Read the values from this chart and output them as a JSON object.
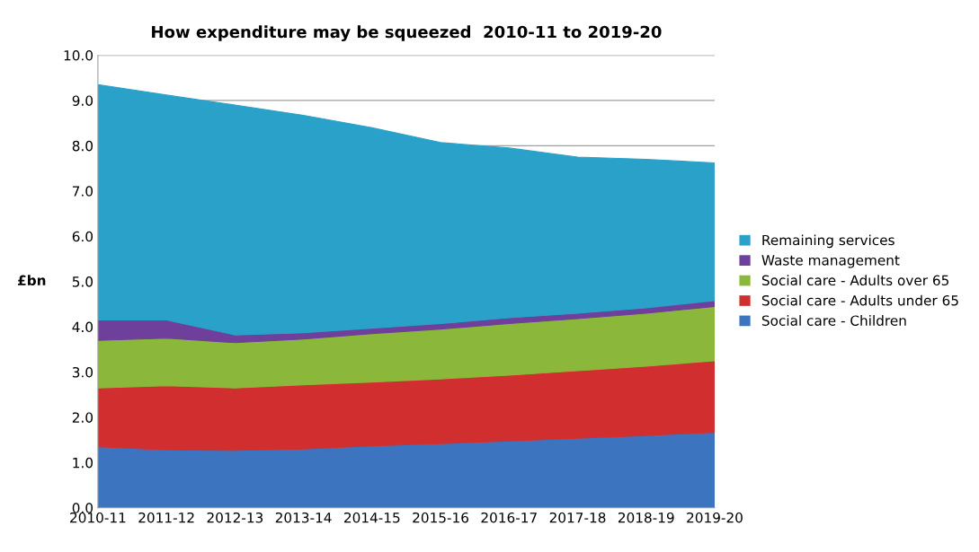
{
  "chart_data": {
    "type": "area",
    "stacked": true,
    "title": "How expenditure may be squeezed  2010-11 to 2019-20",
    "ylabel": "£bn",
    "categories": [
      "2010-11",
      "2011-12",
      "2012-13",
      "2013-14",
      "2014-15",
      "2015-16",
      "2016-17",
      "2017-18",
      "2018-19",
      "2019-20"
    ],
    "series": [
      {
        "name": "Social care - Children",
        "color": "#3d74c0",
        "values": [
          1.35,
          1.28,
          1.27,
          1.3,
          1.37,
          1.42,
          1.48,
          1.54,
          1.6,
          1.67
        ]
      },
      {
        "name": "Social care - Adults under 65",
        "color": "#d12f2f",
        "values": [
          1.3,
          1.42,
          1.38,
          1.42,
          1.41,
          1.43,
          1.45,
          1.49,
          1.53,
          1.58
        ]
      },
      {
        "name": "Social care - Adults over 65",
        "color": "#8bb83a",
        "values": [
          1.05,
          1.05,
          1.0,
          1.01,
          1.07,
          1.1,
          1.14,
          1.15,
          1.17,
          1.2
        ]
      },
      {
        "name": "Waste management",
        "color": "#6e3f9b",
        "values": [
          0.45,
          0.4,
          0.17,
          0.14,
          0.12,
          0.12,
          0.13,
          0.12,
          0.12,
          0.13
        ]
      },
      {
        "name": "Remaining services",
        "color": "#2aa1c8",
        "values": [
          5.2,
          4.97,
          5.08,
          4.8,
          4.43,
          4.0,
          3.75,
          3.45,
          3.28,
          3.04
        ]
      }
    ],
    "ylim": [
      0,
      10
    ],
    "yticks": [
      {
        "value": 0,
        "label": "0.0"
      },
      {
        "value": 1,
        "label": "1.0"
      },
      {
        "value": 2,
        "label": "2.0"
      },
      {
        "value": 3,
        "label": "3.0"
      },
      {
        "value": 4,
        "label": "4.0"
      },
      {
        "value": 5,
        "label": "5.0"
      },
      {
        "value": 6,
        "label": "6.0"
      },
      {
        "value": 7,
        "label": "7.0"
      },
      {
        "value": 8,
        "label": "8.0"
      },
      {
        "value": 9,
        "label": "9.0"
      },
      {
        "value": 10,
        "label": "10.0"
      }
    ],
    "grid": "y",
    "legend": "right"
  }
}
